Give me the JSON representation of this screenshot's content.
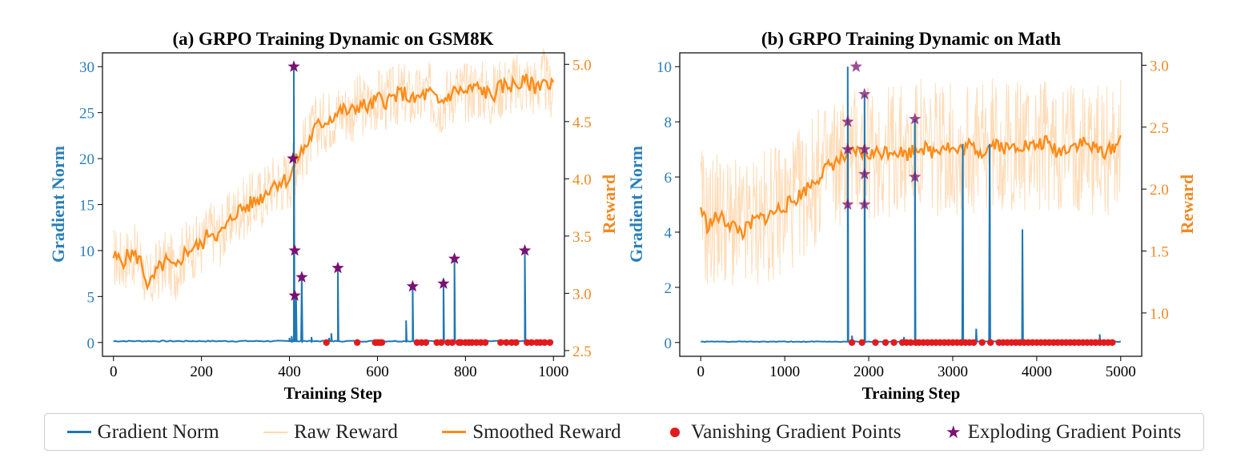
{
  "colors": {
    "gradient_norm": "#1f77b4",
    "raw_reward": "#ffd8b0",
    "smoothed_reward": "#ff8c1a",
    "vanishing": "#e31a1c",
    "exploding": "#7b1172",
    "axis_left": "#2a7fb8",
    "axis_right": "#f08a24"
  },
  "legend": [
    {
      "label": "Gradient Norm",
      "kind": "line-blue"
    },
    {
      "label": "Raw Reward",
      "kind": "line-raw"
    },
    {
      "label": "Smoothed Reward",
      "kind": "line-orange"
    },
    {
      "label": "Vanishing Gradient Points",
      "kind": "dot-red"
    },
    {
      "label": "Exploding Gradient Points",
      "kind": "star-purple"
    }
  ],
  "chart_data": [
    {
      "type": "line",
      "title": "(a) GRPO Training Dynamic on GSM8K",
      "xlabel": "Training Step",
      "ylabel_left": "Gradient Norm",
      "ylabel_right": "Reward",
      "xlim": [
        -25,
        1025
      ],
      "ylim_left": [
        -1.5,
        31.5
      ],
      "ylim_right": [
        2.45,
        5.1
      ],
      "xticks": [
        0,
        200,
        400,
        600,
        800,
        1000
      ],
      "yticks_left": [
        0,
        5,
        10,
        15,
        20,
        25,
        30
      ],
      "yticks_right": [
        2.5,
        3.0,
        3.5,
        4.0,
        4.5,
        5.0
      ],
      "yticks_right_labels": [
        "2.5",
        "3.0",
        "3.5",
        "4.0",
        "4.5",
        "5.0"
      ],
      "x_max": 1000,
      "grad_baseline": 0.15,
      "grad_spikes": [
        {
          "x": 400,
          "y": 0.5
        },
        {
          "x": 405,
          "y": 0.7
        },
        {
          "x": 410,
          "y": 30
        },
        {
          "x": 415,
          "y": 5.0
        },
        {
          "x": 428,
          "y": 7.0
        },
        {
          "x": 450,
          "y": 0.6
        },
        {
          "x": 490,
          "y": 0.5
        },
        {
          "x": 495,
          "y": 1.0
        },
        {
          "x": 510,
          "y": 8.0
        },
        {
          "x": 665,
          "y": 2.4
        },
        {
          "x": 680,
          "y": 6.1
        },
        {
          "x": 750,
          "y": 6.4
        },
        {
          "x": 775,
          "y": 9.0
        },
        {
          "x": 935,
          "y": 10.0
        }
      ],
      "exploding_points": [
        {
          "x": 410,
          "y": 30
        },
        {
          "x": 408,
          "y": 20
        },
        {
          "x": 412,
          "y": 10
        },
        {
          "x": 412,
          "y": 5.1
        },
        {
          "x": 428,
          "y": 7.1
        },
        {
          "x": 510,
          "y": 8.1
        },
        {
          "x": 680,
          "y": 6.1
        },
        {
          "x": 750,
          "y": 6.4
        },
        {
          "x": 775,
          "y": 9.1
        },
        {
          "x": 935,
          "y": 10.0
        }
      ],
      "vanishing_points_x": [
        484,
        554,
        595,
        600,
        605,
        610,
        690,
        700,
        710,
        735,
        745,
        760,
        770,
        785,
        790,
        800,
        808,
        815,
        825,
        835,
        845,
        880,
        893,
        905,
        915,
        940,
        950,
        962,
        970,
        980,
        992
      ],
      "smoothed_reward": [
        [
          0,
          3.32
        ],
        [
          20,
          3.28
        ],
        [
          40,
          3.35
        ],
        [
          60,
          3.3
        ],
        [
          80,
          3.05
        ],
        [
          100,
          3.2
        ],
        [
          120,
          3.28
        ],
        [
          140,
          3.2
        ],
        [
          160,
          3.35
        ],
        [
          180,
          3.4
        ],
        [
          200,
          3.42
        ],
        [
          220,
          3.55
        ],
        [
          240,
          3.5
        ],
        [
          260,
          3.6
        ],
        [
          280,
          3.72
        ],
        [
          300,
          3.75
        ],
        [
          320,
          3.8
        ],
        [
          340,
          3.85
        ],
        [
          360,
          3.95
        ],
        [
          380,
          3.98
        ],
        [
          400,
          4.0
        ],
        [
          420,
          4.2
        ],
        [
          440,
          4.3
        ],
        [
          460,
          4.45
        ],
        [
          480,
          4.5
        ],
        [
          500,
          4.55
        ],
        [
          520,
          4.6
        ],
        [
          540,
          4.58
        ],
        [
          560,
          4.65
        ],
        [
          580,
          4.62
        ],
        [
          600,
          4.7
        ],
        [
          620,
          4.68
        ],
        [
          640,
          4.72
        ],
        [
          660,
          4.75
        ],
        [
          680,
          4.68
        ],
        [
          700,
          4.72
        ],
        [
          720,
          4.75
        ],
        [
          740,
          4.65
        ],
        [
          760,
          4.72
        ],
        [
          780,
          4.78
        ],
        [
          800,
          4.75
        ],
        [
          820,
          4.8
        ],
        [
          840,
          4.77
        ],
        [
          860,
          4.72
        ],
        [
          880,
          4.8
        ],
        [
          900,
          4.82
        ],
        [
          920,
          4.82
        ],
        [
          940,
          4.85
        ],
        [
          960,
          4.8
        ],
        [
          980,
          4.88
        ],
        [
          990,
          4.75
        ],
        [
          1000,
          4.84
        ]
      ],
      "raw_reward_spread": 0.28
    },
    {
      "type": "line",
      "title": "(b) GRPO Training Dynamic on Math",
      "xlabel": "Training Step",
      "ylabel_left": "Gradient Norm",
      "ylabel_right": "Reward",
      "xlim": [
        -250,
        5250
      ],
      "ylim_left": [
        -0.5,
        10.5
      ],
      "ylim_right": [
        0.65,
        3.1
      ],
      "xticks": [
        0,
        1000,
        2000,
        3000,
        4000,
        5000
      ],
      "yticks_left": [
        0,
        2,
        4,
        6,
        8,
        10
      ],
      "yticks_right": [
        1.0,
        1.5,
        2.0,
        2.5,
        3.0
      ],
      "yticks_right_labels": [
        "1.0",
        "1.5",
        "2.0",
        "2.5",
        "3.0"
      ],
      "x_max": 5000,
      "grad_baseline": 0.03,
      "grad_spikes": [
        {
          "x": 1750,
          "y": 10.0
        },
        {
          "x": 1800,
          "y": 0.25
        },
        {
          "x": 1950,
          "y": 9.0
        },
        {
          "x": 2420,
          "y": 0.2
        },
        {
          "x": 2550,
          "y": 8.1
        },
        {
          "x": 3120,
          "y": 7.2
        },
        {
          "x": 3280,
          "y": 0.5
        },
        {
          "x": 3440,
          "y": 7.2
        },
        {
          "x": 3830,
          "y": 4.1
        },
        {
          "x": 4750,
          "y": 0.3
        }
      ],
      "exploding_points": [
        {
          "x": 1850,
          "y": 10.0
        },
        {
          "x": 1750,
          "y": 8.0
        },
        {
          "x": 1750,
          "y": 7.0
        },
        {
          "x": 1750,
          "y": 5.0
        },
        {
          "x": 1950,
          "y": 9.0
        },
        {
          "x": 1950,
          "y": 7.0
        },
        {
          "x": 1950,
          "y": 6.1
        },
        {
          "x": 1950,
          "y": 5.0
        },
        {
          "x": 2550,
          "y": 8.1
        },
        {
          "x": 2550,
          "y": 6.0
        }
      ],
      "vanishing_points_x": [
        1800,
        1920,
        2080,
        2200,
        2300,
        2400,
        2450,
        2500,
        2560,
        2600,
        2650,
        2700,
        2750,
        2800,
        2850,
        2900,
        2950,
        3000,
        3050,
        3100,
        3150,
        3200,
        3250,
        3350,
        3450,
        3550,
        3600,
        3650,
        3700,
        3750,
        3800,
        3850,
        3900,
        3950,
        4000,
        4050,
        4100,
        4150,
        4200,
        4250,
        4300,
        4350,
        4400,
        4450,
        4500,
        4550,
        4600,
        4650,
        4700,
        4750,
        4800,
        4850,
        4900
      ],
      "smoothed_reward": [
        [
          0,
          1.85
        ],
        [
          80,
          1.7
        ],
        [
          200,
          1.78
        ],
        [
          350,
          1.72
        ],
        [
          500,
          1.65
        ],
        [
          650,
          1.75
        ],
        [
          800,
          1.78
        ],
        [
          950,
          1.85
        ],
        [
          1100,
          1.9
        ],
        [
          1250,
          2.0
        ],
        [
          1400,
          2.1
        ],
        [
          1550,
          2.2
        ],
        [
          1700,
          2.25
        ],
        [
          1850,
          2.3
        ],
        [
          2000,
          2.28
        ],
        [
          2150,
          2.3
        ],
        [
          2300,
          2.32
        ],
        [
          2450,
          2.28
        ],
        [
          2600,
          2.35
        ],
        [
          2750,
          2.3
        ],
        [
          2900,
          2.36
        ],
        [
          3050,
          2.3
        ],
        [
          3200,
          2.35
        ],
        [
          3350,
          2.3
        ],
        [
          3500,
          2.38
        ],
        [
          3650,
          2.32
        ],
        [
          3800,
          2.36
        ],
        [
          3950,
          2.34
        ],
        [
          4100,
          2.38
        ],
        [
          4250,
          2.3
        ],
        [
          4400,
          2.35
        ],
        [
          4550,
          2.38
        ],
        [
          4700,
          2.32
        ],
        [
          4850,
          2.3
        ],
        [
          5000,
          2.4
        ]
      ],
      "raw_reward_spread": 0.55
    }
  ]
}
